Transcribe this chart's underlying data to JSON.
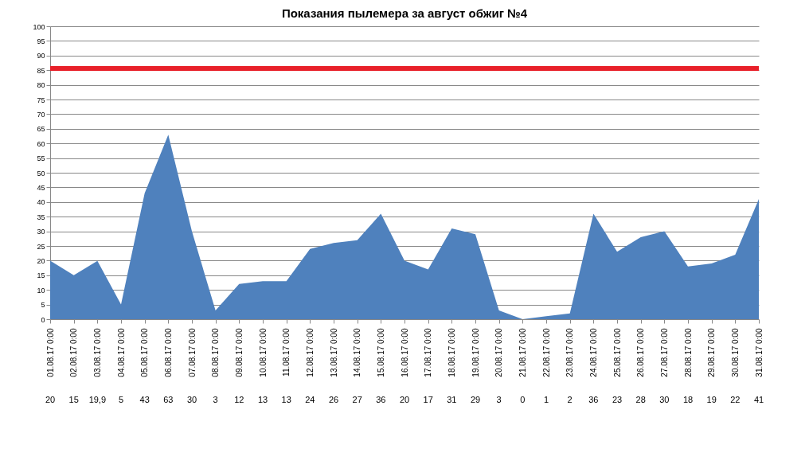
{
  "chart_data": {
    "type": "area",
    "title": "Показания пылемера за август обжиг №4",
    "categories": [
      "01.08.17 0:00",
      "02.08.17 0:00",
      "03.08.17 0:00",
      "04.08.17 0:00",
      "05.08.17 0:00",
      "06.08.17 0:00",
      "07.08.17 0:00",
      "08.08.17 0:00",
      "09.08.17 0:00",
      "10.08.17 0:00",
      "11.08.17 0:00",
      "12.08.17 0:00",
      "13.08.17 0:00",
      "14.08.17 0:00",
      "15.08.17 0:00",
      "16.08.17 0:00",
      "17.08.17 0:00",
      "18.08.17 0:00",
      "19.08.17 0:00",
      "20.08.17 0:00",
      "21.08.17 0:00",
      "22.08.17 0:00",
      "23.08.17 0:00",
      "24.08.17 0:00",
      "25.08.17 0:00",
      "26.08.17 0:00",
      "27.08.17 0:00",
      "28.08.17 0:00",
      "29.08.17 0:00",
      "30.08.17 0:00",
      "31.08.17 0:00"
    ],
    "values": [
      20,
      15,
      19.9,
      5,
      43,
      63,
      30,
      3,
      12,
      13,
      13,
      24,
      26,
      27,
      36,
      20,
      17,
      31,
      29,
      3,
      0,
      1,
      2,
      36,
      23,
      28,
      30,
      18,
      19,
      22,
      41
    ],
    "value_labels": [
      "20",
      "15",
      "19,9",
      "5",
      "43",
      "63",
      "30",
      "3",
      "12",
      "13",
      "13",
      "24",
      "26",
      "27",
      "36",
      "20",
      "17",
      "31",
      "29",
      "3",
      "0",
      "1",
      "2",
      "36",
      "23",
      "28",
      "30",
      "18",
      "19",
      "22",
      "41"
    ],
    "color": "#4f81bd",
    "ylim": [
      0,
      100
    ],
    "yticks": [
      0,
      5,
      10,
      15,
      20,
      25,
      30,
      35,
      40,
      45,
      50,
      55,
      60,
      65,
      70,
      75,
      80,
      85,
      90,
      95,
      100
    ],
    "grid": "y",
    "ref_lines": [
      {
        "axis": "y",
        "value": 85.5,
        "color": "#e8202a"
      }
    ]
  }
}
